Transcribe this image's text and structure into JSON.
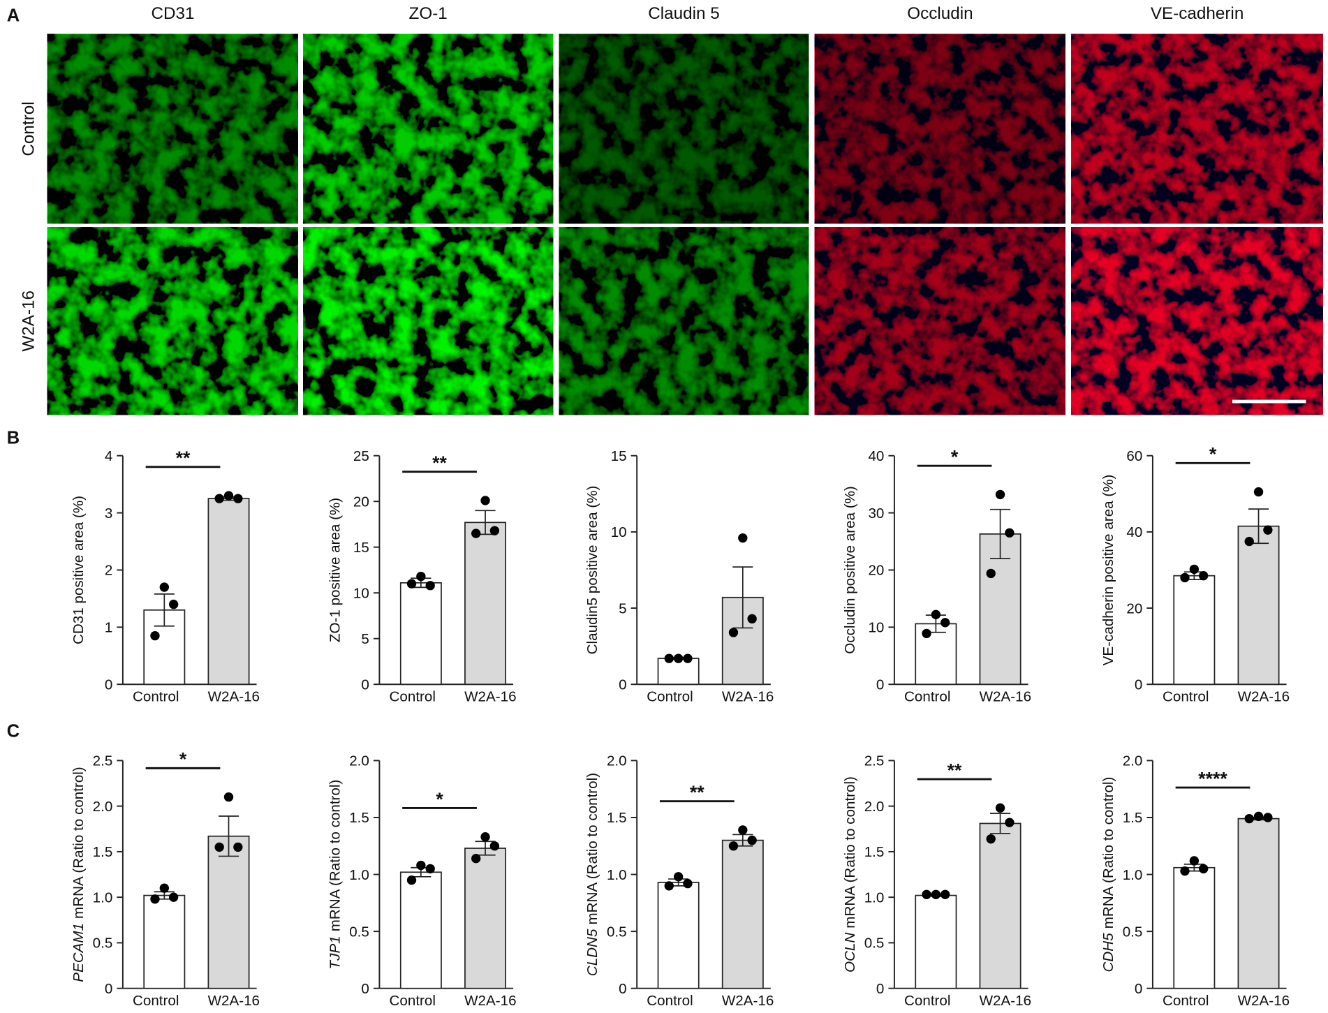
{
  "panel_labels": [
    "A",
    "B",
    "C"
  ],
  "image_grid": {
    "columns": [
      "CD31",
      "ZO-1",
      "Claudin 5",
      "Occludin",
      "VE-cadherin"
    ],
    "rows": [
      "Control",
      "W2A-16"
    ]
  },
  "chart_data": [
    {
      "type": "bar",
      "ylabel": "CD31 positive area (%)",
      "categories": [
        "Control",
        "W2A-16"
      ],
      "values": [
        1.3,
        3.25
      ],
      "errors": [
        0.28,
        0.03
      ],
      "points": [
        [
          1.7,
          1.4,
          0.85
        ],
        [
          3.3,
          3.25,
          3.25
        ]
      ],
      "colors": [
        "#ffffff",
        "#d9d9d9"
      ],
      "point_color": "#000000",
      "ylim": [
        0,
        4
      ],
      "yticks": [
        0,
        1,
        2,
        3,
        4
      ],
      "significance": "**"
    },
    {
      "type": "bar",
      "ylabel": "ZO-1 positive area (%)",
      "categories": [
        "Control",
        "W2A-16"
      ],
      "values": [
        11.1,
        17.7
      ],
      "errors": [
        0.5,
        1.3
      ],
      "points": [
        [
          11.8,
          10.8,
          11.0
        ],
        [
          20.1,
          16.8,
          16.5
        ]
      ],
      "colors": [
        "#ffffff",
        "#d9d9d9"
      ],
      "point_color": "#000000",
      "ylim": [
        0,
        25
      ],
      "yticks": [
        0,
        5,
        10,
        15,
        20,
        25
      ],
      "significance": "**"
    },
    {
      "type": "bar",
      "ylabel": "Claudin5 positive area (%)",
      "categories": [
        "Control",
        "W2A-16"
      ],
      "values": [
        1.7,
        5.7
      ],
      "errors": [
        0.05,
        2.0
      ],
      "points": [
        [
          1.7,
          1.7,
          1.7
        ],
        [
          9.6,
          4.3,
          3.4
        ]
      ],
      "colors": [
        "#ffffff",
        "#d9d9d9"
      ],
      "point_color": "#000000",
      "ylim": [
        0,
        15
      ],
      "yticks": [
        0,
        5,
        10,
        15
      ]
    },
    {
      "type": "bar",
      "ylabel": "Occludin positive area (%)",
      "categories": [
        "Control",
        "W2A-16"
      ],
      "values": [
        10.6,
        26.3
      ],
      "errors": [
        1.5,
        4.3
      ],
      "points": [
        [
          12.2,
          10.8,
          8.9
        ],
        [
          33.2,
          26.5,
          19.4
        ]
      ],
      "colors": [
        "#ffffff",
        "#d9d9d9"
      ],
      "point_color": "#000000",
      "ylim": [
        0,
        40
      ],
      "yticks": [
        0,
        10,
        20,
        30,
        40
      ],
      "significance": "*"
    },
    {
      "type": "bar",
      "ylabel": "VE-cadherin positive area (%)",
      "categories": [
        "Control",
        "W2A-16"
      ],
      "values": [
        28.5,
        41.5
      ],
      "errors": [
        1.0,
        4.5
      ],
      "points": [
        [
          30.2,
          28.5,
          28.0
        ],
        [
          50.5,
          40.5,
          37.5
        ]
      ],
      "colors": [
        "#ffffff",
        "#d9d9d9"
      ],
      "point_color": "#000000",
      "ylim": [
        0,
        60
      ],
      "yticks": [
        0,
        20,
        40,
        60
      ],
      "significance": "*"
    },
    {
      "type": "bar",
      "ylabel_italic": "PECAM1",
      "ylabel": "mRNA (Ratio to control)",
      "categories": [
        "Control",
        "W2A-16"
      ],
      "values": [
        1.02,
        1.67
      ],
      "errors": [
        0.04,
        0.22
      ],
      "points": [
        [
          1.1,
          1.0,
          0.98
        ],
        [
          2.1,
          1.55,
          1.55
        ]
      ],
      "colors": [
        "#ffffff",
        "#d9d9d9"
      ],
      "point_color": "#000000",
      "ylim": [
        0,
        2.5
      ],
      "yticks": [
        0,
        0.5,
        {
          "value": 1,
          "label": "1.0"
        },
        1.5,
        {
          "value": 2,
          "label": "2.0"
        },
        2.5
      ],
      "significance": "*"
    },
    {
      "type": "bar",
      "ylabel_italic": "TJP1",
      "ylabel": "mRNA (Ratio to control)",
      "categories": [
        "Control",
        "W2A-16"
      ],
      "values": [
        1.02,
        1.23
      ],
      "errors": [
        0.04,
        0.06
      ],
      "points": [
        [
          1.08,
          1.05,
          0.95
        ],
        [
          1.33,
          1.25,
          1.14
        ]
      ],
      "colors": [
        "#ffffff",
        "#d9d9d9"
      ],
      "point_color": "#000000",
      "ylim": [
        0,
        2
      ],
      "yticks": [
        0,
        0.5,
        {
          "value": 1,
          "label": "1.0"
        },
        1.5,
        {
          "value": 2,
          "label": "2.0"
        }
      ],
      "significance": "*"
    },
    {
      "type": "bar",
      "ylabel_italic": "CLDN5",
      "ylabel": "mRNA (Ratio to control)",
      "categories": [
        "Control",
        "W2A-16"
      ],
      "values": [
        0.93,
        1.3
      ],
      "errors": [
        0.03,
        0.05
      ],
      "points": [
        [
          0.98,
          0.92,
          0.9
        ],
        [
          1.39,
          1.3,
          1.25
        ]
      ],
      "colors": [
        "#ffffff",
        "#d9d9d9"
      ],
      "point_color": "#000000",
      "ylim": [
        0,
        2
      ],
      "yticks": [
        0,
        0.5,
        {
          "value": 1,
          "label": "1.0"
        },
        1.5,
        {
          "value": 2,
          "label": "2.0"
        }
      ],
      "significance": "**"
    },
    {
      "type": "bar",
      "ylabel_italic": "OCLN",
      "ylabel": "mRNA (Ratio to control)",
      "categories": [
        "Control",
        "W2A-16"
      ],
      "values": [
        1.02,
        1.81
      ],
      "errors": [
        0.01,
        0.11
      ],
      "points": [
        [
          1.03,
          1.03,
          1.03
        ],
        [
          1.98,
          1.82,
          1.64
        ]
      ],
      "colors": [
        "#ffffff",
        "#d9d9d9"
      ],
      "point_color": "#000000",
      "ylim": [
        0,
        2.5
      ],
      "yticks": [
        0,
        0.5,
        {
          "value": 1,
          "label": "1.0"
        },
        1.5,
        {
          "value": 2,
          "label": "2.0"
        },
        2.5
      ],
      "significance": "**"
    },
    {
      "type": "bar",
      "ylabel_italic": "CDH5",
      "ylabel": "mRNA (Ratio to control)",
      "categories": [
        "Control",
        "W2A-16"
      ],
      "values": [
        1.06,
        1.49
      ],
      "errors": [
        0.03,
        0.01
      ],
      "points": [
        [
          1.12,
          1.05,
          1.03
        ],
        [
          1.51,
          1.5,
          1.49
        ]
      ],
      "colors": [
        "#ffffff",
        "#d9d9d9"
      ],
      "point_color": "#000000",
      "ylim": [
        0,
        2
      ],
      "yticks": [
        0,
        0.5,
        {
          "value": 1,
          "label": "1.0"
        },
        1.5,
        {
          "value": 2,
          "label": "2.0"
        }
      ],
      "significance": "****"
    }
  ]
}
